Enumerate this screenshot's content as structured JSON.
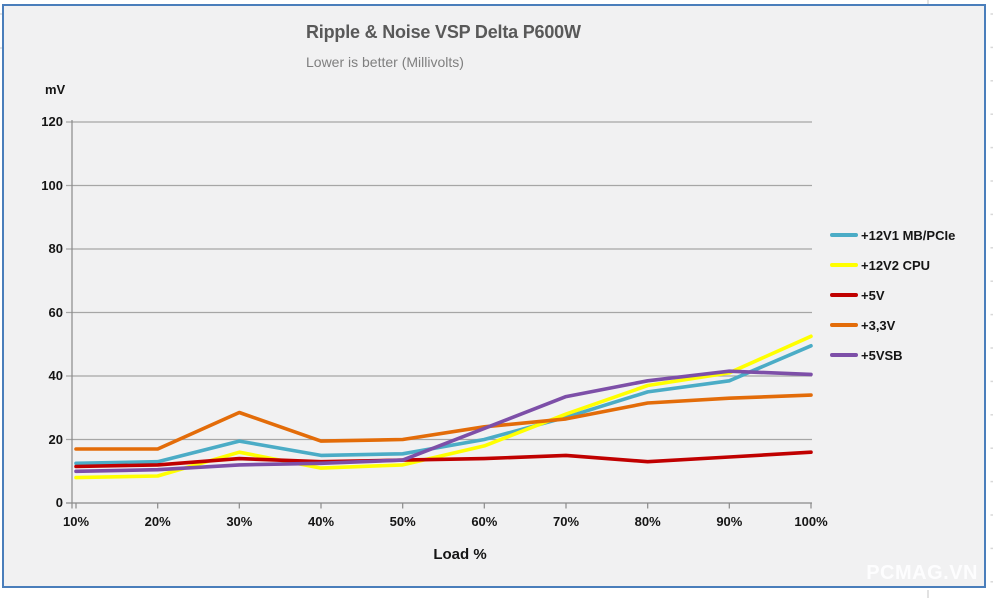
{
  "watermark": "PCMAG.VN",
  "colors": {
    "frame_border": "#4a7ebb",
    "chart_background": "#f1f1f2",
    "page_background": "#ffffff",
    "gridline": "#a6a6a6",
    "axis": "#8a8a8a",
    "margin_gridline": "#d8d8d8",
    "title_text": "#595959",
    "subtitle_text": "#7f7f7f",
    "label_text": "#151515"
  },
  "chart_data": {
    "type": "line",
    "title": "Ripple & Noise VSP Delta P600W",
    "subtitle": "Lower is better (Millivolts)",
    "xlabel": "Load %",
    "ylabel": "mV",
    "categories": [
      "10%",
      "20%",
      "30%",
      "40%",
      "50%",
      "60%",
      "70%",
      "80%",
      "90%",
      "100%"
    ],
    "series": [
      {
        "name": "+12V1 MB/PCIe",
        "color": "#4bacc6",
        "values": [
          12.5,
          13,
          19.5,
          15,
          15.5,
          20,
          27,
          35,
          38.5,
          49.5
        ]
      },
      {
        "name": "+12V2 CPU",
        "color": "#ffff00",
        "values": [
          8,
          8.5,
          16,
          11,
          12,
          18,
          28,
          37,
          41,
          52.5
        ]
      },
      {
        "name": "+5V",
        "color": "#c00000",
        "values": [
          11.5,
          12,
          14,
          13,
          13.5,
          14,
          15,
          13,
          14.5,
          16
        ]
      },
      {
        "name": "+3,3V",
        "color": "#e36c09",
        "values": [
          17,
          17,
          28.5,
          19.5,
          20,
          24,
          26.5,
          31.5,
          33,
          34
        ]
      },
      {
        "name": "+5VSB",
        "color": "#7d4fa8",
        "values": [
          10,
          10.5,
          12,
          12.5,
          13.5,
          23.5,
          33.5,
          38.5,
          41.5,
          40.5
        ]
      }
    ],
    "ylim": [
      0,
      120
    ],
    "y_ticks": [
      0,
      20,
      40,
      60,
      80,
      100,
      120
    ],
    "grid": "horizontal",
    "legend_position": "right"
  }
}
